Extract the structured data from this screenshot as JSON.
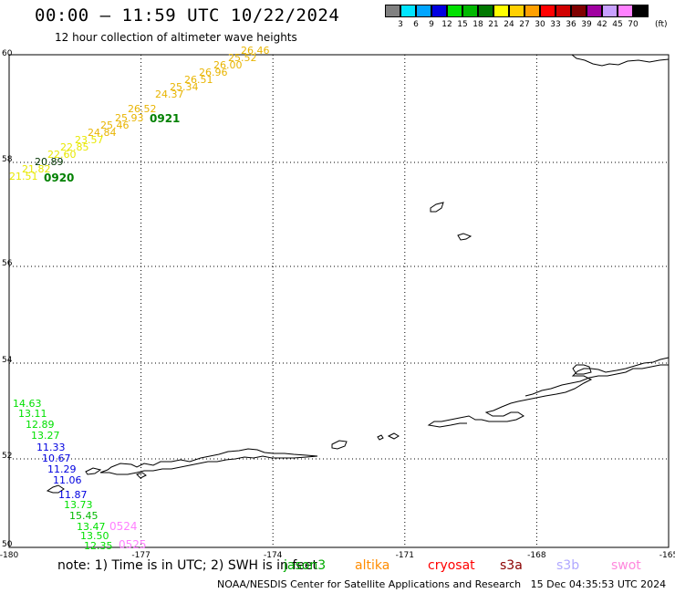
{
  "header": {
    "title": "00:00 – 11:59 UTC 10/22/2024",
    "subtitle": "12 hour collection of altimeter wave heights"
  },
  "colorbar": {
    "unit": "(ft)",
    "colors": [
      "#808080",
      "#00e5ff",
      "#00a5ff",
      "#0000e0",
      "#00e000",
      "#00b800",
      "#007800",
      "#ffff00",
      "#ffd000",
      "#ffa000",
      "#ff0000",
      "#d00000",
      "#800000",
      "#a000a0",
      "#c8a0ff",
      "#ff80ff",
      "#000000"
    ],
    "ticks": [
      "3",
      "6",
      "9",
      "12",
      "15",
      "18",
      "21",
      "24",
      "27",
      "30",
      "33",
      "36",
      "39",
      "42",
      "45",
      "70"
    ]
  },
  "map": {
    "lon_range": [
      -180,
      -165
    ],
    "lat_range": [
      50,
      60
    ],
    "lat_labels": [
      "60",
      "58",
      "56",
      "54",
      "52",
      "50"
    ],
    "lon_labels": [
      "-180",
      "-177",
      "-174",
      "-171",
      "-168",
      "-165"
    ],
    "grid": "dotted",
    "track_0920": {
      "label": "0920",
      "heights": [
        "21.51",
        "21.82",
        "20.89",
        "22.60",
        "22.85",
        "23.57",
        "24.84",
        "25.46",
        "25.93",
        "26.52",
        "24.37",
        "25.34",
        "26.51",
        "26.96",
        "26.00",
        "25.52",
        "26.46"
      ]
    },
    "track_0921": {
      "label": "0921"
    },
    "track_0524": {
      "label": "0524",
      "heights": [
        "14.63",
        "13.11",
        "12.89",
        "13.27",
        "11.33",
        "10.67",
        "11.29",
        "11.06",
        "11.87",
        "13.73",
        "15.45",
        "13.47",
        "13.50",
        "12.35"
      ]
    },
    "track_0525": {
      "label": "0525"
    }
  },
  "footer": {
    "note": "note: 1) Time is in UTC; 2) SWH is in feet",
    "legend": [
      {
        "name": "jason3",
        "color": "#00aa00"
      },
      {
        "name": "altika",
        "color": "#ff8c00"
      },
      {
        "name": "cryosat",
        "color": "#ff0000"
      },
      {
        "name": "s3a",
        "color": "#8b0000"
      },
      {
        "name": "s3b",
        "color": "#b0a8ff"
      },
      {
        "name": "swot",
        "color": "#ff88dd"
      }
    ],
    "credit": "NOAA/NESDIS Center for Satellite Applications and Research",
    "timestamp": "15 Dec 04:35:53 UTC 2024"
  }
}
